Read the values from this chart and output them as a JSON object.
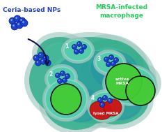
{
  "title_left": "Ceria-based NPs",
  "title_right": "MRSA-infected\nmacrophage",
  "title_left_color": "#2244bb",
  "title_right_color": "#22cc55",
  "bg_color": "#ffffff",
  "np_color": "#1a44cc",
  "np_dark": "#0a1a88",
  "macrophage_blobs": [
    [
      130,
      115,
      88,
      62,
      0
    ],
    [
      160,
      95,
      48,
      38,
      15
    ],
    [
      108,
      148,
      45,
      38,
      5
    ],
    [
      172,
      148,
      42,
      30,
      -10
    ],
    [
      88,
      78,
      35,
      25,
      5
    ],
    [
      195,
      120,
      30,
      25,
      -5
    ]
  ],
  "macrophage_color": "#3ab090",
  "macrophage_inner_color": "#28a080",
  "halo_color": "#a0c8c0",
  "vesicle1": [
    112,
    72,
    20,
    15,
    0
  ],
  "vesicle2": [
    88,
    112,
    20,
    16,
    -8
  ],
  "vesicle3": [
    158,
    90,
    20,
    15,
    5
  ],
  "vesicle4": [
    152,
    152,
    23,
    20,
    0
  ],
  "vesicle_large": [
    95,
    142,
    30,
    28,
    0
  ],
  "vesicle_color": "#50ccaa",
  "vesicle_border": "#88ddcc",
  "active_mrsa1": [
    178,
    117,
    26,
    26,
    0
  ],
  "active_mrsa2": [
    202,
    130,
    21,
    21,
    0
  ],
  "active_mrsa_color": "#44cc33",
  "active_mrsa_border": "#111111",
  "green_sphere": [
    95,
    142,
    22,
    22,
    0
  ],
  "green_sphere_color": "#44cc33",
  "lysed1": [
    145,
    158,
    16,
    13,
    15
  ],
  "lysed2": [
    162,
    154,
    13,
    12,
    -5
  ],
  "lysed_color": "#cc1111",
  "lysed_border": "#991111"
}
